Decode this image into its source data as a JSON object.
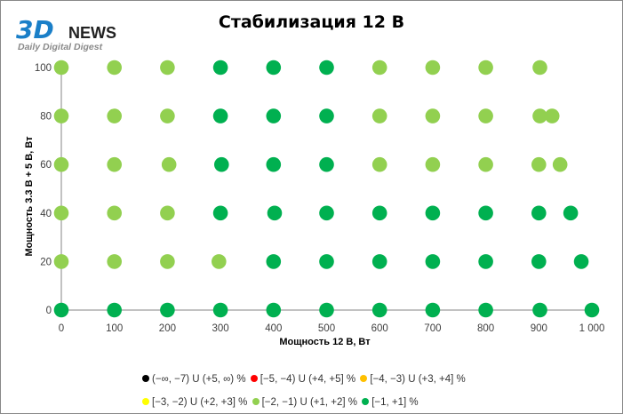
{
  "logo": {
    "brand_main": "3D",
    "brand_suffix": "NEWS",
    "tagline": "Daily Digital Digest"
  },
  "chart_data": {
    "type": "scatter",
    "title": "Стабилизация 12 В",
    "xlabel": "Мощность  12 В, Вт",
    "ylabel": "Мощность  3.3 В + 5 В, Вт",
    "xlim": [
      0,
      1000
    ],
    "ylim": [
      0,
      100
    ],
    "x_ticks": [
      "0",
      "100",
      "200",
      "300",
      "400",
      "500",
      "600",
      "700",
      "800",
      "900",
      "1 000"
    ],
    "y_ticks": [
      "0",
      "20",
      "40",
      "60",
      "80",
      "100"
    ],
    "grid": false,
    "legend_position": "bottom",
    "series": [
      {
        "name": "(−∞, −7) U (+5, ∞) %",
        "color": "#000000",
        "points": []
      },
      {
        "name": "[−5, −4) U (+4, +5] %",
        "color": "#ff0000",
        "points": []
      },
      {
        "name": "[−4, −3) U (+3, +4] %",
        "color": "#ffc000",
        "points": []
      },
      {
        "name": "[−3, −2) U (+2, +3] %",
        "color": "#ffff00",
        "points": []
      },
      {
        "name": "[−2, −1) U (+1, +2] %",
        "color": "#92d050",
        "points": [
          [
            0,
            100
          ],
          [
            100,
            100
          ],
          [
            200,
            100
          ],
          [
            600,
            100
          ],
          [
            700,
            100
          ],
          [
            800,
            100
          ],
          [
            902,
            100
          ],
          [
            0,
            80
          ],
          [
            100,
            80
          ],
          [
            200,
            80
          ],
          [
            600,
            80
          ],
          [
            700,
            80
          ],
          [
            800,
            80
          ],
          [
            902,
            80
          ],
          [
            925,
            80
          ],
          [
            0,
            60
          ],
          [
            100,
            60
          ],
          [
            203,
            60
          ],
          [
            600,
            60
          ],
          [
            700,
            60
          ],
          [
            800,
            60
          ],
          [
            900,
            60
          ],
          [
            940,
            60
          ],
          [
            0,
            40
          ],
          [
            100,
            40
          ],
          [
            200,
            40
          ],
          [
            0,
            20
          ],
          [
            100,
            20
          ],
          [
            200,
            20
          ],
          [
            297,
            20
          ]
        ]
      },
      {
        "name": "[−1, +1] %",
        "color": "#00b050",
        "points": [
          [
            300,
            100
          ],
          [
            400,
            100
          ],
          [
            500,
            100
          ],
          [
            300,
            80
          ],
          [
            400,
            80
          ],
          [
            500,
            80
          ],
          [
            302,
            60
          ],
          [
            400,
            60
          ],
          [
            500,
            60
          ],
          [
            300,
            40
          ],
          [
            402,
            40
          ],
          [
            500,
            40
          ],
          [
            600,
            40
          ],
          [
            700,
            40
          ],
          [
            800,
            40
          ],
          [
            900,
            40
          ],
          [
            960,
            40
          ],
          [
            400,
            20
          ],
          [
            500,
            20
          ],
          [
            600,
            20
          ],
          [
            700,
            20
          ],
          [
            800,
            20
          ],
          [
            900,
            20
          ],
          [
            980,
            20
          ],
          [
            0,
            0
          ],
          [
            100,
            0
          ],
          [
            200,
            0
          ],
          [
            300,
            0
          ],
          [
            400,
            0
          ],
          [
            500,
            0
          ],
          [
            600,
            0
          ],
          [
            700,
            0
          ],
          [
            800,
            0
          ],
          [
            902,
            0
          ],
          [
            1000,
            0
          ]
        ]
      }
    ]
  }
}
